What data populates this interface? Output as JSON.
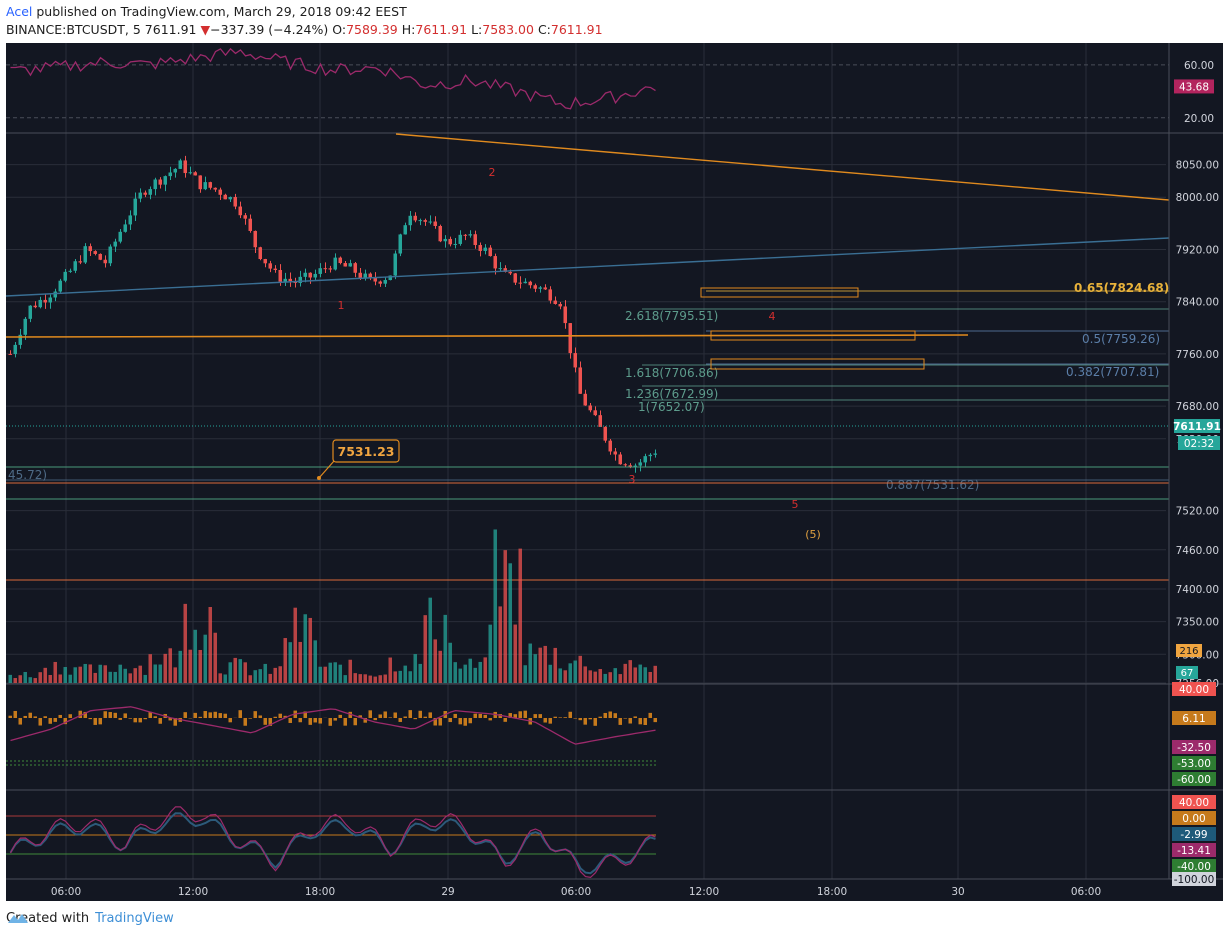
{
  "header": {
    "author": "Acel",
    "published_text": "published on TradingView.com, March 29, 2018 09:42 EEST",
    "symbol": "BINANCE:BTCUSDT, 5",
    "last": "7611.91",
    "change_arrow": "▼",
    "change": "−337.39 (−4.24%)",
    "o_label": "O:",
    "o_value": "7589.39",
    "h_label": "H:",
    "h_value": "7611.91",
    "l_label": "L:",
    "l_value": "7583.00",
    "c_label": "C:",
    "c_value": "7611.91"
  },
  "footer": {
    "created_with": "Created with",
    "brand": "TradingView",
    "logo_icon": "tradingview-logo-icon"
  },
  "colors": {
    "background": "#131722",
    "grid": "#2a2e39",
    "up": "#26a69a",
    "down": "#ef5350",
    "rsi": "#9c2a6b",
    "orange": "#e08a1e",
    "blue_line": "#3a6f94",
    "fib_green": "#4a9a7a",
    "fib_text": "#5d8c8c"
  },
  "chart_data": {
    "type": "candlestick",
    "symbol": "BINANCE:BTCUSDT",
    "interval": "5",
    "x_tick_labels": [
      "06:00",
      "12:00",
      "18:00",
      "29",
      "06:00",
      "12:00",
      "18:00",
      "30",
      "06:00"
    ],
    "price_axis_labels": [
      "8050.00",
      "8000.00",
      "7920.00",
      "7840.00",
      "7760.00",
      "7680.00",
      "7630.00",
      "7520.00",
      "7460.00",
      "7400.00",
      "7350.00",
      "7300.00",
      "7256.00"
    ],
    "ylim": [
      7256,
      8080
    ],
    "series": [
      {
        "name": "BTCUSDT close (approx)",
        "values": [
          7760,
          7830,
          7850,
          7880,
          7920,
          7900,
          7960,
          8010,
          8030,
          8050,
          8020,
          8010,
          7990,
          7920,
          7880,
          7870,
          7880,
          7900,
          7890,
          7870,
          7880,
          7980,
          7960,
          7930,
          7940,
          7920,
          7880,
          7870,
          7860,
          7840,
          7700,
          7650,
          7600,
          7590,
          7611.91
        ]
      }
    ],
    "last_price": "7611.91",
    "countdown": "02:32",
    "fib_labels": [
      {
        "text": "0.65(7824.68)",
        "price": 7824.68
      },
      {
        "text": "2.618(7795.51)",
        "price": 7795.51
      },
      {
        "text": "0.5(7759.26)",
        "price": 7759.26
      },
      {
        "text": "1.618(7706.86)",
        "price": 7706.86
      },
      {
        "text": "0.382(7707.81)",
        "price": 7707.81
      },
      {
        "text": "1.236(7672.99)",
        "price": 7672.99
      },
      {
        "text": "1(7652.07)",
        "price": 7652.07
      },
      {
        "text": "0.887(7531.62)",
        "price": 7531.62
      }
    ],
    "left_cut_label": "45.72)",
    "callout": "7531.23",
    "wave_labels": [
      "1",
      "2",
      "3",
      "4",
      "5",
      "(5)"
    ],
    "volume": {
      "axis_labels": [
        "216",
        "67"
      ],
      "approx_values": [
        10,
        20,
        15,
        20,
        30,
        80,
        20,
        15,
        60,
        18,
        12,
        25,
        70,
        20,
        120,
        35,
        25,
        15,
        20
      ]
    },
    "rsi_top": {
      "axis_labels": [
        "60.00",
        "43.68",
        "20.00"
      ],
      "values": [
        55,
        58,
        62,
        60,
        65,
        70,
        62,
        56,
        58,
        45,
        48,
        40,
        30,
        35,
        43.68
      ]
    },
    "macd_panel": {
      "axis_labels": [
        "40.00",
        "6.11",
        "-32.50",
        "-53.00",
        "-60.00"
      ],
      "values": [
        -60,
        -30,
        20,
        30,
        0,
        -20,
        -40,
        10,
        25,
        -10,
        -30,
        20,
        10,
        -10,
        -70,
        -50,
        -32.5
      ]
    },
    "osc_panel": {
      "axis_labels": [
        "40.00",
        "0.00",
        "-2.99",
        "-13.41",
        "-40.00",
        "-100.00"
      ],
      "values": [
        -40,
        10,
        30,
        -20,
        40,
        50,
        -10,
        -60,
        20,
        30,
        -30,
        40,
        20,
        -60,
        10,
        -80,
        -60,
        -13.41
      ]
    }
  }
}
